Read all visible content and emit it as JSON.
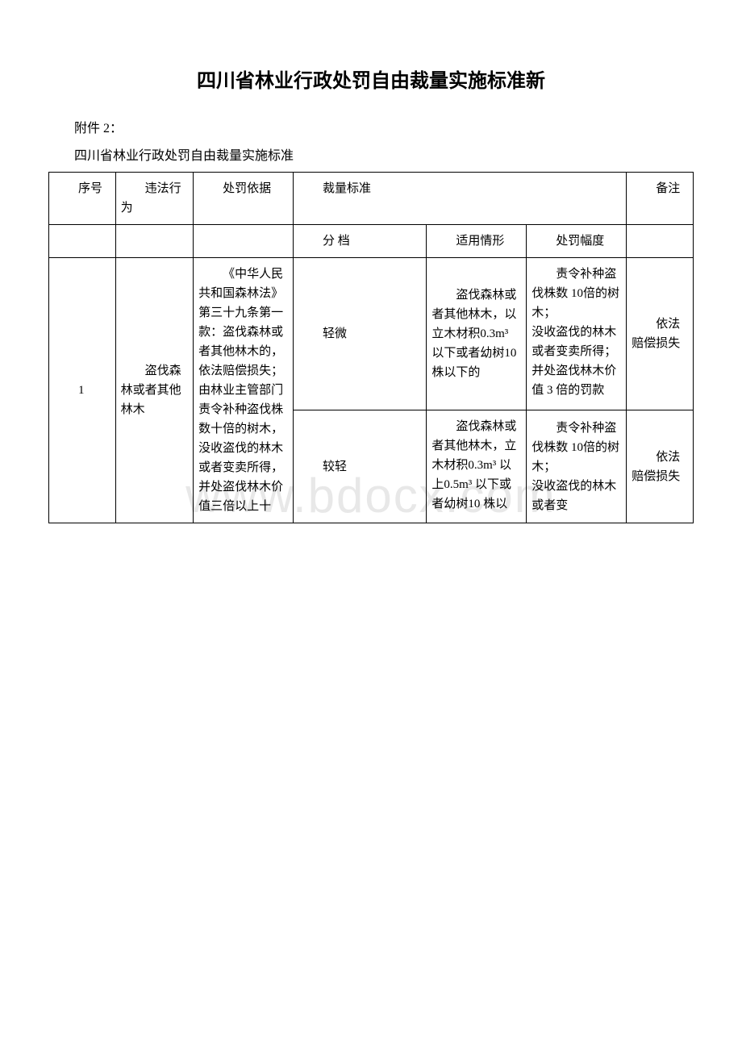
{
  "watermark": "www.bdocx.com",
  "title": "四川省林业行政处罚自由裁量实施标准新",
  "prefix": "附件 2：",
  "subtitle": "四川省林业行政处罚自由裁量实施标准",
  "table": {
    "header": {
      "seq": "序号",
      "behavior": "违法行为",
      "basis": "处罚依据",
      "standard": "裁量标准",
      "note": "备注",
      "sub_level": "分 档",
      "sub_situation": "适用情形",
      "sub_penalty": "处罚幅度"
    },
    "row": {
      "seq": "1",
      "behavior": "盗伐森林或者其他林木",
      "basis": "《中华人民共和国森林法》第三十九条第一款：盗伐森林或者其他林木的，依法赔偿损失；由林业主管部门责令补种盗伐株数十倍的树木，没收盗伐的林木或者变卖所得，并处盗伐林木价值三倍以上十",
      "levels": [
        {
          "level": "轻微",
          "situation": "盗伐森林或者其他林木，以立木材积0.3m³ 以下或者幼树10 株以下的",
          "penalty": "责令补种盗伐株数 10倍的树木；\n没收盗伐的林木或者变卖所得；\n并处盗伐林木价值 3 倍的罚款",
          "note": "依法赔偿损失"
        },
        {
          "level": "较轻",
          "situation": "盗伐森林或者其他林木，立木材积0.3m³ 以上0.5m³ 以下或者幼树10 株以",
          "penalty": "责令补种盗伐株数 10倍的树木；\n没收盗伐的林木或者变",
          "note": "依法赔偿损失"
        }
      ]
    }
  }
}
